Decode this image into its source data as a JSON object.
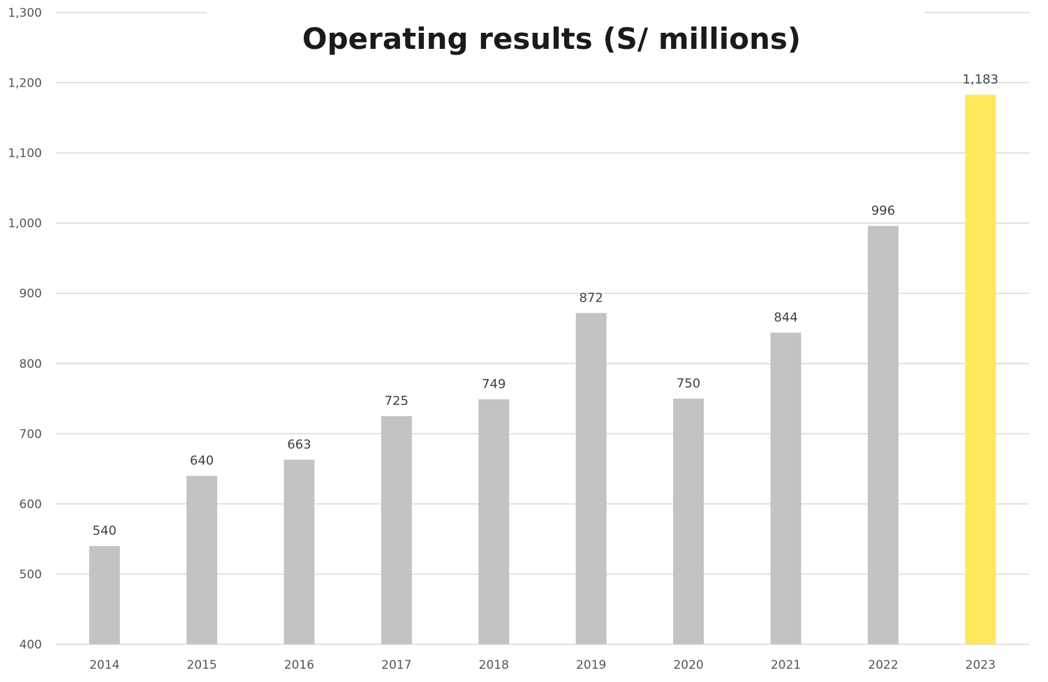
{
  "chart_data": {
    "type": "bar",
    "title": "Operating results (S/ millions)",
    "xlabel": "",
    "ylabel": "",
    "categories": [
      "2014",
      "2015",
      "2016",
      "2017",
      "2018",
      "2019",
      "2020",
      "2021",
      "2022",
      "2023"
    ],
    "values": [
      540,
      640,
      663,
      725,
      749,
      872,
      750,
      844,
      996,
      1183
    ],
    "data_labels": [
      "540",
      "640",
      "663",
      "725",
      "749",
      "872",
      "750",
      "844",
      "996",
      "1,183"
    ],
    "ylim": [
      400,
      1300
    ],
    "yticks": [
      400,
      500,
      600,
      700,
      800,
      900,
      1000,
      1100,
      1200,
      1300
    ],
    "ytick_labels": [
      "400",
      "500",
      "600",
      "700",
      "800",
      "900",
      "1,000",
      "1,100",
      "1,200",
      "1,300"
    ],
    "grid": true,
    "legend": "none",
    "colors": {
      "default_bar": "#c3c3c3",
      "highlight_bar": "#ffe85c",
      "highlight_category": "2023",
      "grid": "#d9d9d9"
    }
  }
}
